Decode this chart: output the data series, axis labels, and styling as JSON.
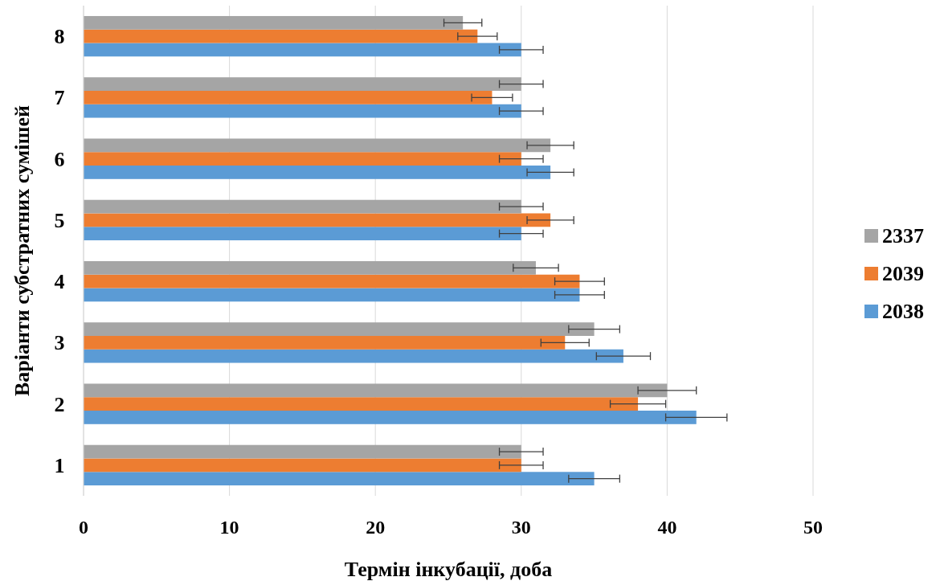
{
  "chart_data": {
    "type": "bar",
    "orientation": "horizontal",
    "xlabel": "Термін інкубації, доба",
    "ylabel": "Варіанти субстратних сумішей",
    "categories": [
      "8",
      "7",
      "6",
      "5",
      "4",
      "3",
      "2",
      "1"
    ],
    "series": [
      {
        "name": "2038",
        "color": "#5b9bd5",
        "values": [
          30,
          30,
          32,
          30,
          34,
          37,
          42,
          35
        ],
        "errors": [
          1.5,
          1.5,
          1.6,
          1.5,
          1.7,
          1.85,
          2.1,
          1.75
        ]
      },
      {
        "name": "2039",
        "color": "#ed7d31",
        "values": [
          27,
          28,
          30,
          32,
          34,
          33,
          38,
          30
        ],
        "errors": [
          1.35,
          1.4,
          1.5,
          1.6,
          1.7,
          1.65,
          1.9,
          1.5
        ]
      },
      {
        "name": "2337",
        "color": "#a5a5a5",
        "values": [
          26,
          30,
          32,
          30,
          31,
          35,
          40,
          30
        ],
        "errors": [
          1.3,
          1.5,
          1.6,
          1.5,
          1.55,
          1.75,
          2,
          1.5
        ]
      }
    ],
    "xlim": [
      0,
      50
    ],
    "xticks": [
      0,
      10,
      20,
      30,
      40,
      50
    ],
    "grid": "x",
    "legend": "right"
  }
}
